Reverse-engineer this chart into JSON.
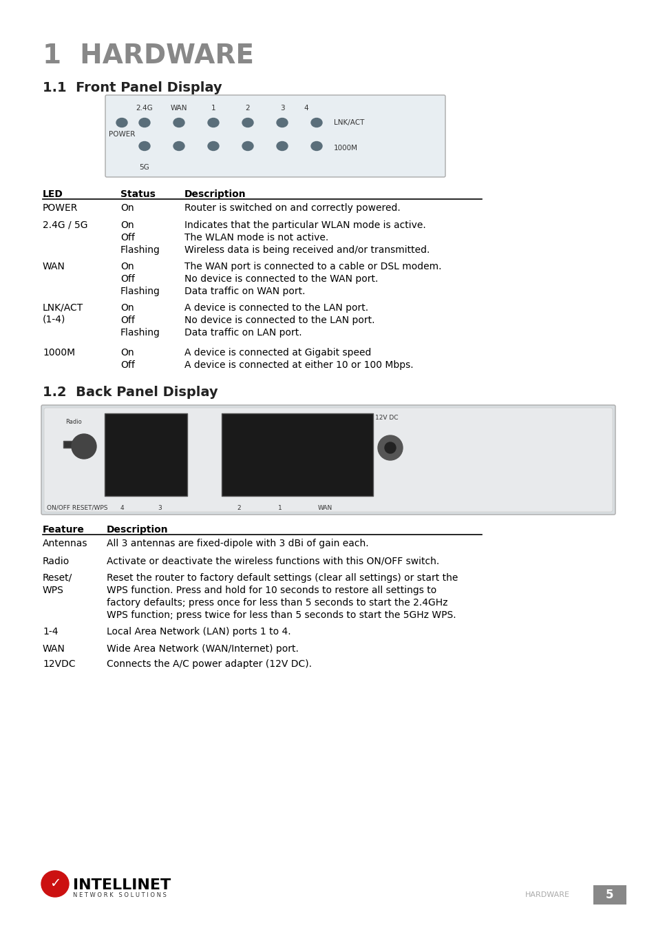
{
  "bg_color": "#ffffff",
  "title": "1  HARDWARE",
  "title_color": "#888888",
  "section1": "1.1  Front Panel Display",
  "section2": "1.2  Back Panel Display",
  "section_color": "#222222",
  "table1_headers": [
    "LED",
    "Status",
    "Description"
  ],
  "table1_rows": [
    [
      "POWER",
      "On",
      "Router is switched on and correctly powered."
    ],
    [
      "2.4G / 5G",
      "On\nOff\nFlashing",
      "Indicates that the particular WLAN mode is active.\nThe WLAN mode is not active.\nWireless data is being received and/or transmitted."
    ],
    [
      "WAN",
      "On\nOff\nFlashing",
      "The WAN port is connected to a cable or DSL modem.\nNo device is connected to the WAN port.\nData traffic on WAN port."
    ],
    [
      "LNK/ACT\n(1-4)",
      "On\nOff\nFlashing",
      "A device is connected to the LAN port.\nNo device is connected to the LAN port.\nData traffic on LAN port."
    ],
    [
      "1000M",
      "On\nOff",
      "A device is connected at Gigabit speed\nA device is connected at either 10 or 100 Mbps."
    ]
  ],
  "table2_headers": [
    "Feature",
    "Description"
  ],
  "table2_rows": [
    [
      "Antennas",
      "All 3 antennas are fixed-dipole with 3 dBi of gain each."
    ],
    [
      "Radio",
      "Activate or deactivate the wireless functions with this ON/OFF switch."
    ],
    [
      "Reset/\nWPS",
      "Reset the router to factory default settings (clear all settings) or start the\nWPS function. Press and hold for 10 seconds to restore all settings to\nfactory defaults; press once for less than 5 seconds to start the 2.4GHz\nWPS function; press twice for less than 5 seconds to start the 5GHz WPS."
    ],
    [
      "1-4",
      "Local Area Network (LAN) ports 1 to 4."
    ],
    [
      "WAN",
      "Wide Area Network (WAN/Internet) port."
    ],
    [
      "12VDC",
      "Connects the A/C power adapter (12V DC)."
    ]
  ],
  "footer_hardware": "HARDWARE",
  "footer_page": "5",
  "led_color": "#5a6e7a",
  "panel_bg": "#e8eef2",
  "panel_border": "#aaaaaa"
}
